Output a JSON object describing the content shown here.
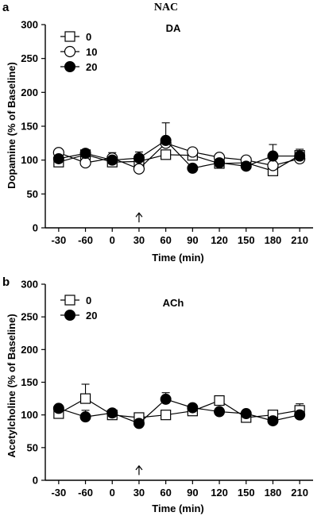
{
  "figure": {
    "heading": "NAC"
  },
  "chart_data": [
    {
      "type": "line",
      "panel": "a",
      "title": "DA",
      "xlabel": "Time (min)",
      "ylabel": "Dopamine (% of Baseline)",
      "x": [
        -30,
        -60,
        0,
        30,
        60,
        90,
        120,
        150,
        180,
        210
      ],
      "xticks": [
        "-30",
        "-60",
        "0",
        "30",
        "60",
        "90",
        "120",
        "150",
        "180",
        "210"
      ],
      "ylim": [
        0,
        300
      ],
      "yticks": [
        "0",
        "50",
        "100",
        "150",
        "200",
        "250",
        "300"
      ],
      "arrow_at": "30",
      "legend_position": "top-left",
      "series": [
        {
          "name": "0",
          "marker": "square-open",
          "values": [
            97,
            108,
            97,
            98,
            108,
            107,
            95,
            96,
            84,
            107
          ],
          "err": [
            null,
            null,
            null,
            null,
            null,
            null,
            null,
            null,
            null,
            null
          ]
        },
        {
          "name": "10",
          "marker": "circle-open",
          "values": [
            111,
            96,
            103,
            87,
            125,
            112,
            104,
            100,
            92,
            102
          ],
          "err": [
            null,
            null,
            8,
            null,
            30,
            null,
            null,
            null,
            null,
            null
          ]
        },
        {
          "name": "20",
          "marker": "circle-filled",
          "values": [
            102,
            110,
            100,
            103,
            129,
            88,
            96,
            91,
            106,
            106
          ],
          "err": [
            null,
            null,
            null,
            9,
            null,
            null,
            null,
            null,
            17,
            10
          ]
        }
      ]
    },
    {
      "type": "line",
      "panel": "b",
      "title": "ACh",
      "xlabel": "Time (min)",
      "ylabel": "Acetylcholine (% of Baseline)",
      "x": [
        -30,
        -60,
        0,
        30,
        60,
        90,
        120,
        150,
        180,
        210
      ],
      "xticks": [
        "-30",
        "-60",
        "0",
        "30",
        "60",
        "90",
        "120",
        "150",
        "180",
        "210"
      ],
      "ylim": [
        0,
        300
      ],
      "yticks": [
        "0",
        "50",
        "100",
        "150",
        "200",
        "250",
        "300"
      ],
      "arrow_at": "30",
      "legend_position": "top-left",
      "series": [
        {
          "name": "0",
          "marker": "square-open",
          "values": [
            102,
            125,
            100,
            96,
            100,
            106,
            122,
            96,
            100,
            107
          ],
          "err": [
            null,
            22,
            null,
            null,
            null,
            null,
            null,
            null,
            null,
            10
          ]
        },
        {
          "name": "20",
          "marker": "circle-filled",
          "values": [
            110,
            97,
            103,
            87,
            124,
            111,
            105,
            102,
            91,
            100
          ],
          "err": [
            null,
            10,
            null,
            null,
            10,
            null,
            null,
            null,
            null,
            null
          ]
        }
      ]
    }
  ]
}
